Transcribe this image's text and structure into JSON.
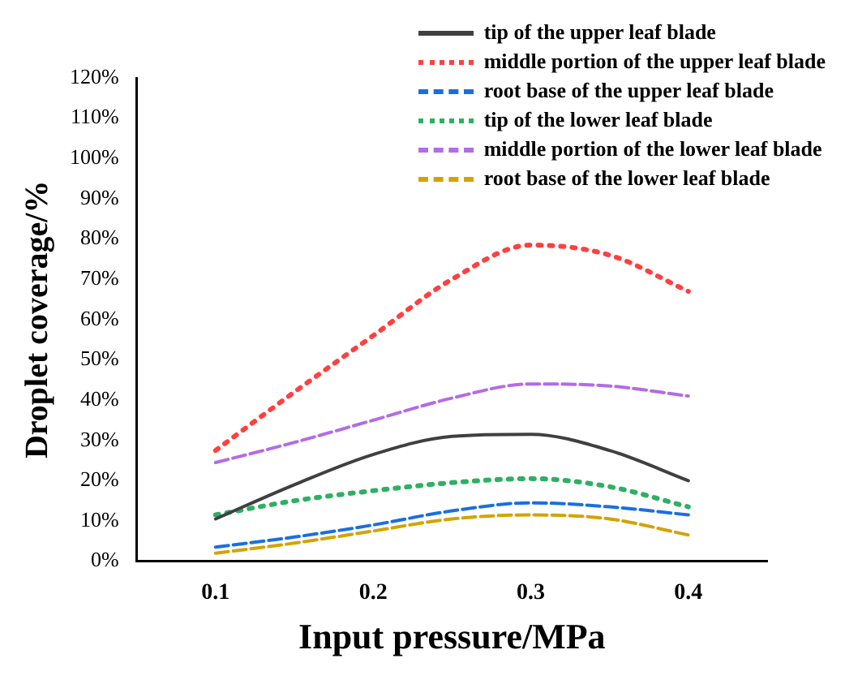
{
  "chart_data": {
    "type": "line",
    "xlabel": "Input pressure/MPa",
    "ylabel": "Droplet coverage/%",
    "xlim": [
      0.05,
      0.45
    ],
    "xticks": [
      0.1,
      0.2,
      0.3,
      0.4
    ],
    "ylim": [
      0,
      120
    ],
    "yticks": [
      {
        "value": 0,
        "label": "0%"
      },
      {
        "value": 10,
        "label": "10%"
      },
      {
        "value": 20,
        "label": "20%"
      },
      {
        "value": 30,
        "label": "30%"
      },
      {
        "value": 40,
        "label": "40%"
      },
      {
        "value": 50,
        "label": "50%"
      },
      {
        "value": 60,
        "label": "60%"
      },
      {
        "value": 70,
        "label": "70%"
      },
      {
        "value": 80,
        "label": "80%"
      },
      {
        "value": 90,
        "label": "90%"
      },
      {
        "value": 100,
        "label": "100%"
      },
      {
        "value": 110,
        "label": "110%"
      },
      {
        "value": 120,
        "label": "120%"
      }
    ],
    "x": [
      0.1,
      0.15,
      0.2,
      0.25,
      0.3,
      0.35,
      0.4
    ],
    "grid": false,
    "legend": "top right",
    "marker": "none",
    "series": [
      {
        "name": "tip of the upper leaf blade",
        "color": "#404040",
        "line_style": "solid",
        "values": [
          10.5,
          19,
          26.5,
          31,
          31.5,
          27.5,
          20
        ]
      },
      {
        "name": "middle portion of the upper leaf blade",
        "color": "#ff4040",
        "line_style": "dotted",
        "values": [
          27.5,
          42,
          56,
          70,
          78.5,
          76,
          67
        ]
      },
      {
        "name": "root base of the upper leaf blade",
        "color": "#1a6fe0",
        "line_style": "dashed",
        "values": [
          3.5,
          6,
          9,
          12.5,
          14.5,
          13.5,
          11.5
        ]
      },
      {
        "name": "tip of the lower leaf blade",
        "color": "#2eb062",
        "line_style": "dotted",
        "values": [
          11.5,
          15,
          17.5,
          19.5,
          20.5,
          18.5,
          13.5
        ]
      },
      {
        "name": "middle portion of the lower leaf blade",
        "color": "#b26ce6",
        "line_style": "dashed",
        "values": [
          24.5,
          29.5,
          35,
          40.5,
          44,
          43.5,
          41
        ]
      },
      {
        "name": "root base of the lower leaf blade",
        "color": "#d4a300",
        "line_style": "dashed",
        "values": [
          2,
          4.5,
          7.5,
          10.5,
          11.5,
          10.5,
          6.5
        ]
      }
    ]
  }
}
